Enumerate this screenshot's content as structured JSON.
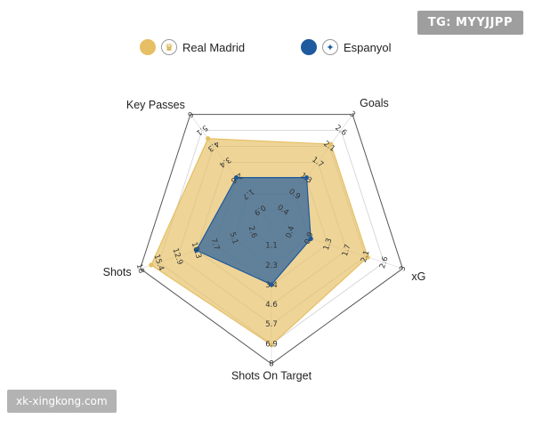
{
  "watermark": "TG: MYYJJPP",
  "site_tag": "xk-xingkong.com",
  "legend": [
    {
      "label": "Real Madrid",
      "color": "#E6BF64",
      "icon": "real-madrid-crest-icon"
    },
    {
      "label": "Espanyol",
      "color": "#1D5A9E",
      "icon": "espanyol-crest-icon"
    }
  ],
  "chart_data": {
    "type": "radar",
    "title": "",
    "axes": [
      {
        "label": "Goals",
        "max": 3,
        "ticks": [
          "0.4",
          "0.9",
          "1.3",
          "1.7",
          "2.1",
          "2.6",
          "3"
        ]
      },
      {
        "label": "xG",
        "max": 3,
        "ticks": [
          "0.4",
          "0.9",
          "1.3",
          "1.7",
          "2.1",
          "2.6",
          "3"
        ]
      },
      {
        "label": "Shots On Target",
        "max": 8,
        "ticks": [
          "1.1",
          "2.3",
          "3.4",
          "4.6",
          "5.7",
          "6.9",
          "8"
        ]
      },
      {
        "label": "Shots",
        "max": 18,
        "ticks": [
          "2.6",
          "5.1",
          "7.7",
          "10.3",
          "12.9",
          "15.4",
          "18"
        ]
      },
      {
        "label": "Key Passes",
        "max": 6,
        "ticks": [
          "0.9",
          "1.7",
          "2.6",
          "3.4",
          "4.3",
          "5.1",
          "6"
        ]
      }
    ],
    "rings": 7,
    "series": [
      {
        "name": "Real Madrid",
        "color": "#E6BF64",
        "values": [
          2.2,
          2.2,
          6.9,
          16.5,
          4.7
        ]
      },
      {
        "name": "Espanyol",
        "color": "#1D5A9E",
        "values": [
          1.3,
          0.9,
          3.4,
          10.3,
          2.6
        ]
      }
    ]
  }
}
